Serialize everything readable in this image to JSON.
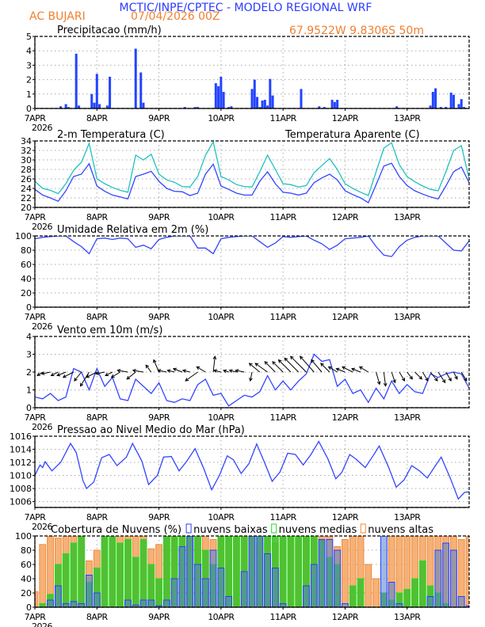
{
  "header": {
    "title": "MCTIC/INPE/CPTEC - MODELO REGIONAL WRF",
    "location": "AC BUJARI",
    "run": "07/04/2026 00Z",
    "coords": "67.9522W 9.8306S 50m",
    "colors": {
      "title": "#2a3cff",
      "info": "#f08030"
    }
  },
  "x_axis": {
    "ticks": [
      "7APR",
      "8APR",
      "9APR",
      "10APR",
      "11APR",
      "12APR",
      "13APR"
    ],
    "year": "2026",
    "range_hours": [
      0,
      168
    ],
    "grid": true
  },
  "chart_data": [
    {
      "id": "precip",
      "type": "bar",
      "title": "Precipitacao (mm/h)",
      "ylim": [
        0,
        5
      ],
      "yticks": [
        0,
        1,
        2,
        3,
        4,
        5
      ],
      "color": "#2244ff",
      "hours": [
        10,
        12,
        13,
        16,
        17,
        22,
        23,
        24,
        25,
        28,
        29,
        39,
        41,
        42,
        58,
        62,
        63,
        70,
        71,
        72,
        73,
        75,
        76,
        84,
        85,
        86,
        87,
        88,
        89,
        90,
        91,
        92,
        103,
        110,
        112,
        115,
        116,
        117,
        140,
        153,
        154,
        155,
        157,
        159,
        161,
        162,
        164,
        165,
        166
      ],
      "values": [
        0.15,
        0.3,
        0.1,
        3.8,
        0.2,
        1.0,
        0.4,
        2.4,
        0.3,
        0.2,
        2.2,
        4.15,
        2.5,
        0.4,
        0.1,
        0.1,
        0.1,
        1.75,
        1.55,
        2.2,
        1.15,
        0.1,
        0.15,
        1.35,
        2.0,
        0.8,
        0.1,
        0.55,
        0.6,
        0.2,
        2.05,
        0.9,
        1.35,
        0.15,
        0.1,
        0.6,
        0.45,
        0.6,
        0.15,
        0.2,
        1.15,
        1.4,
        0.1,
        0.1,
        1.1,
        0.95,
        0.3,
        0.65,
        0.1
      ]
    },
    {
      "id": "temperature",
      "type": "line",
      "title": "2-m Temperatura (C)",
      "title2": "Temperatura Aparente (C)",
      "ylim": [
        20,
        34
      ],
      "yticks": [
        20,
        22,
        24,
        26,
        28,
        30,
        32,
        34
      ],
      "step_hours": 3,
      "series": [
        {
          "name": "2-m Temperatura (C)",
          "color": "#3344ff",
          "values": [
            23.8,
            22.6,
            22.0,
            21.3,
            23.5,
            26.5,
            27.0,
            29.2,
            24.5,
            23.4,
            22.6,
            22.2,
            21.8,
            26.5,
            27.0,
            27.6,
            25.5,
            24.0,
            23.4,
            23.3,
            22.5,
            23.0,
            27.0,
            29.1,
            24.5,
            23.8,
            23.0,
            22.6,
            22.6,
            25.5,
            27.5,
            25.0,
            23.2,
            23.0,
            22.6,
            23.0,
            25.2,
            26.2,
            27.0,
            25.8,
            23.5,
            22.7,
            22.0,
            21.0,
            24.8,
            28.7,
            29.3,
            26.5,
            24.6,
            23.5,
            22.8,
            22.2,
            21.8,
            24.5,
            27.5,
            28.5,
            25.2
          ]
        },
        {
          "name": "Temperatura Aparente (C)",
          "color": "#20c0c0",
          "values": [
            25.5,
            24.0,
            23.6,
            22.9,
            25.0,
            27.8,
            29.5,
            33.5,
            26.0,
            25.0,
            24.2,
            23.6,
            23.2,
            31.0,
            30.0,
            31.2,
            27.0,
            25.8,
            25.3,
            24.4,
            24.3,
            26.5,
            31.0,
            33.8,
            26.5,
            25.8,
            24.8,
            24.4,
            24.3,
            27.5,
            31.0,
            28.0,
            25.0,
            24.8,
            24.3,
            24.6,
            27.3,
            28.8,
            30.3,
            28.0,
            25.0,
            24.0,
            23.2,
            22.5,
            27.5,
            32.5,
            33.6,
            29.0,
            26.5,
            25.4,
            24.5,
            23.8,
            23.5,
            27.5,
            32.0,
            33.0,
            26.0
          ]
        }
      ]
    },
    {
      "id": "humidity",
      "type": "line",
      "title": "Umidade Relativa em 2m (%)",
      "ylim": [
        0,
        100
      ],
      "yticks": [
        0,
        20,
        40,
        60,
        80,
        100
      ],
      "step_hours": 3,
      "series": [
        {
          "color": "#3344ff",
          "values": [
            96,
            98,
            99,
            100,
            100,
            92,
            85,
            75,
            96,
            97,
            95,
            97,
            96,
            84,
            87,
            82,
            95,
            98,
            100,
            100,
            100,
            83,
            83,
            75,
            96,
            98,
            99,
            100,
            100,
            92,
            84,
            90,
            99,
            98,
            99,
            100,
            94,
            89,
            81,
            87,
            96,
            97,
            98,
            100,
            85,
            73,
            71,
            85,
            94,
            98,
            100,
            100,
            100,
            90,
            80,
            79,
            93
          ]
        }
      ]
    },
    {
      "id": "wind",
      "type": "line",
      "title": "Vento em 10m (m/s)",
      "ylim": [
        0,
        4
      ],
      "yticks": [
        0,
        1,
        2,
        3,
        4
      ],
      "step_hours": 3,
      "series": [
        {
          "color": "#3344ff",
          "values": [
            0.6,
            0.5,
            0.8,
            0.4,
            0.6,
            2.2,
            2.0,
            1.0,
            2.2,
            1.2,
            1.7,
            0.5,
            0.4,
            1.6,
            1.2,
            0.8,
            1.4,
            0.4,
            0.3,
            0.5,
            0.4,
            1.3,
            1.6,
            0.7,
            0.8,
            0.1,
            0.4,
            0.7,
            0.6,
            0.9,
            1.8,
            1.0,
            1.5,
            1.0,
            1.5,
            1.9,
            3.0,
            2.6,
            2.7,
            1.2,
            1.6,
            0.8,
            1.0,
            0.3,
            1.1,
            0.5,
            1.5,
            0.8,
            1.3,
            0.9,
            0.8,
            1.9,
            1.7,
            1.9,
            2.0,
            1.9,
            1.1
          ]
        }
      ],
      "vectors": {
        "u": [
          -0.4,
          -0.3,
          -0.5,
          -0.4,
          -0.5,
          -0.6,
          -0.4,
          -0.5,
          -0.6,
          -0.5,
          -0.4,
          -0.5,
          -0.6,
          -0.5,
          -0.6,
          -0.3,
          -0.3,
          -0.5,
          -0.4,
          -0.5,
          -0.4,
          -0.7,
          -0.5,
          0.1,
          -0.4,
          -0.3,
          -0.4,
          -0.5,
          -0.1,
          -0.6,
          -0.7,
          -0.6,
          -0.6,
          -0.7,
          -0.8,
          -0.9,
          -0.8,
          -0.6,
          -0.5,
          -0.5,
          -0.5,
          -0.6,
          -0.5,
          -0.5,
          0.2,
          0.1,
          0.2,
          0.3,
          0.3,
          0.4,
          0.3,
          0.4,
          0.4,
          0.3,
          0.2,
          0.3,
          0.1
        ],
        "v": [
          -0.1,
          -0.2,
          -0.1,
          -0.2,
          -0.2,
          -0.3,
          -0.5,
          -0.8,
          -0.3,
          -0.1,
          -0.2,
          -0.3,
          0.1,
          -0.4,
          0.1,
          0.4,
          0.7,
          0.1,
          0.1,
          0.2,
          0.1,
          -0.5,
          0.3,
          0.9,
          0.1,
          0.1,
          0.1,
          0.1,
          -0.5,
          0.5,
          0.5,
          0.6,
          0.6,
          0.7,
          0.8,
          0.9,
          0.9,
          0.7,
          0.5,
          0.3,
          0.2,
          0.3,
          0.2,
          0.3,
          -0.7,
          -0.8,
          -0.6,
          -0.5,
          -0.4,
          -0.4,
          -0.5,
          -0.5,
          -0.6,
          -0.5,
          -0.4,
          -0.5,
          -0.3
        ]
      }
    },
    {
      "id": "pressure",
      "type": "line",
      "title": "Pressao ao Nivel Medio do Mar (hPa)",
      "ylim": [
        1005.1,
        1016
      ],
      "yticks": [
        1006,
        1008,
        1010,
        1012,
        1014,
        1016
      ],
      "series": [
        {
          "color": "#3344ff",
          "hours": [
            0,
            2,
            3,
            4,
            6.6,
            10,
            13.8,
            16,
            18.6,
            20,
            22.8,
            25.8,
            28.8,
            31.8,
            35.4,
            37.8,
            41.4,
            44,
            47.4,
            49.8,
            52.8,
            55.8,
            58.8,
            62,
            65.4,
            68.4,
            71.4,
            74.4,
            76.8,
            79.8,
            82.8,
            85.8,
            88.8,
            91.8,
            94.8,
            97.8,
            100.8,
            103.8,
            106.8,
            109.8,
            113.4,
            116.4,
            118.8,
            121.8,
            124.2,
            127.8,
            130.8,
            133.2,
            136.8,
            139.8,
            142.8,
            145.8,
            148.8,
            151.8,
            154.8,
            157.2,
            160.8,
            163.8,
            166.2,
            168
          ],
          "values": [
            1010.0,
            1011.6,
            1011.2,
            1012.1,
            1010.7,
            1012.0,
            1014.9,
            1013.5,
            1009.2,
            1008.0,
            1009.0,
            1012.7,
            1013.2,
            1011.5,
            1012.8,
            1014.9,
            1012.2,
            1008.6,
            1010.0,
            1012.8,
            1012.9,
            1010.7,
            1012.2,
            1014.1,
            1011.0,
            1007.8,
            1010.0,
            1013.0,
            1012.4,
            1010.3,
            1011.8,
            1014.8,
            1012.0,
            1009.1,
            1010.5,
            1013.4,
            1013.2,
            1011.6,
            1013.2,
            1015.2,
            1012.5,
            1009.5,
            1010.5,
            1013.2,
            1012.5,
            1011.2,
            1013.0,
            1014.5,
            1011.3,
            1008.2,
            1009.3,
            1011.5,
            1010.7,
            1009.6,
            1011.4,
            1012.8,
            1009.5,
            1006.4,
            1007.4,
            1007.5
          ]
        }
      ]
    },
    {
      "id": "clouds",
      "type": "bar",
      "title": "Cobertura de Nuvens (%)",
      "ylim": [
        0,
        100
      ],
      "yticks": [
        0,
        20,
        40,
        60,
        80,
        100
      ],
      "step_hours": 3,
      "series": [
        {
          "name": "nuvens altas",
          "color": "#f08a3a",
          "fill": "#f4a868",
          "values": [
            22,
            88,
            100,
            97,
            100,
            100,
            100,
            65,
            80,
            100,
            100,
            100,
            100,
            100,
            100,
            82,
            88,
            100,
            100,
            100,
            100,
            100,
            100,
            95,
            100,
            100,
            100,
            100,
            100,
            90,
            100,
            90,
            100,
            100,
            100,
            100,
            100,
            100,
            100,
            85,
            95,
            100,
            100,
            60,
            40,
            0,
            100,
            100,
            100,
            100,
            100,
            100,
            100,
            100,
            100,
            95,
            100
          ]
        },
        {
          "name": "nuvens medias",
          "color": "#22dd22",
          "fill": "#44c02c",
          "values": [
            0,
            5,
            18,
            60,
            75,
            90,
            100,
            35,
            55,
            100,
            100,
            90,
            95,
            70,
            95,
            60,
            40,
            100,
            100,
            100,
            100,
            100,
            80,
            60,
            100,
            100,
            100,
            100,
            100,
            100,
            100,
            100,
            100,
            100,
            100,
            100,
            100,
            95,
            70,
            60,
            0,
            30,
            40,
            0,
            0,
            20,
            10,
            20,
            25,
            40,
            65,
            30,
            20,
            5,
            0,
            0,
            0
          ]
        },
        {
          "name": "nuvens baixas",
          "color": "#2a3cff",
          "fill": "#4d7fd0",
          "values": [
            0,
            0,
            10,
            30,
            5,
            8,
            5,
            45,
            20,
            0,
            0,
            0,
            10,
            3,
            10,
            10,
            2,
            10,
            40,
            85,
            100,
            60,
            40,
            80,
            55,
            15,
            0,
            50,
            100,
            100,
            75,
            55,
            5,
            0,
            0,
            30,
            60,
            95,
            95,
            80,
            5,
            0,
            0,
            0,
            0,
            100,
            35,
            5,
            0,
            0,
            0,
            15,
            80,
            90,
            80,
            15,
            2
          ]
        }
      ]
    }
  ]
}
